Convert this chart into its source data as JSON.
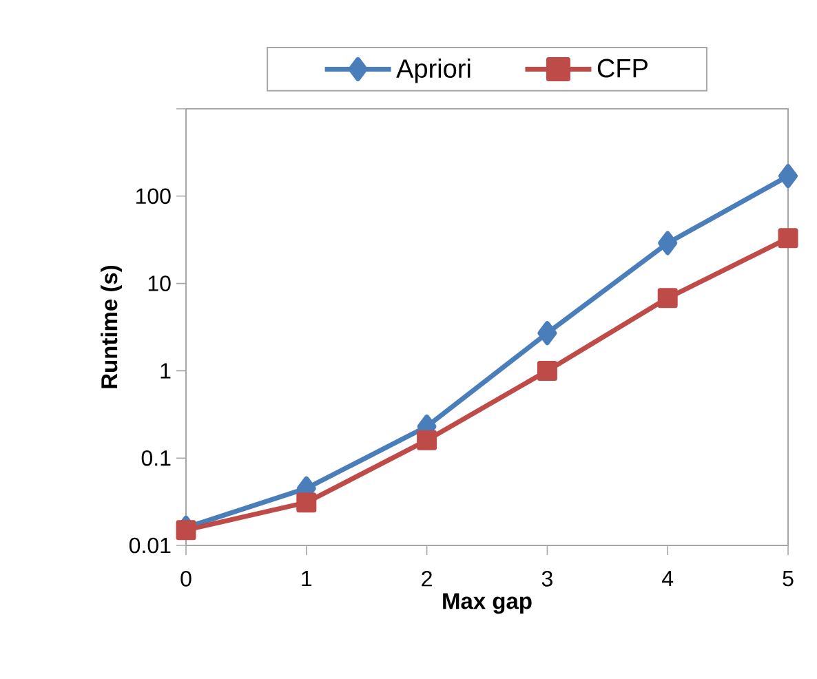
{
  "chart_data": {
    "type": "line",
    "xlabel": "Max gap",
    "ylabel": "Runtime (s)",
    "x": [
      0,
      1,
      2,
      3,
      4,
      5
    ],
    "xlim": [
      0,
      5
    ],
    "xticks": [
      0,
      1,
      2,
      3,
      4,
      5
    ],
    "ylim": [
      0.01,
      1000
    ],
    "yticks": [
      0.01,
      0.1,
      1,
      10,
      100,
      {
        "value": 1000,
        "label": null
      }
    ],
    "log": "y",
    "legend": "top",
    "grid": false,
    "series": [
      {
        "name": "Apriori",
        "color": "#4a7ebb",
        "marker": "diamond",
        "values": [
          0.016,
          0.045,
          0.23,
          2.7,
          29,
          170
        ]
      },
      {
        "name": "CFP",
        "color": "#be4b48",
        "marker": "square",
        "values": [
          0.015,
          0.031,
          0.16,
          1.0,
          6.8,
          33
        ]
      }
    ]
  }
}
